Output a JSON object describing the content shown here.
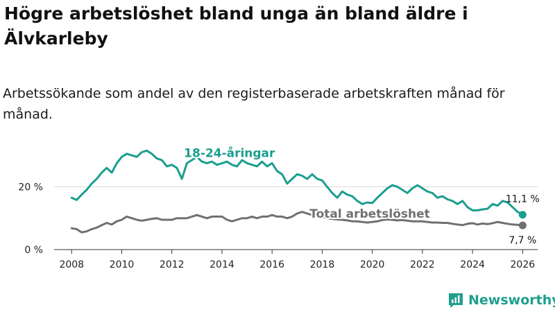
{
  "title": "Högre arbetslöshet bland unga än bland äldre i Älvkarleby",
  "subtitle": "Arbetssökande som andel av den registerbaserade arbetskraften månad för månad.",
  "brand": "Newsworthy",
  "colors": {
    "youth": "#1a9e8f",
    "total": "#707070",
    "grid": "#d9d9d9",
    "axis": "#333333"
  },
  "chart_data": {
    "type": "line",
    "title": "Högre arbetslöshet bland unga än bland äldre i Älvkarleby",
    "subtitle": "Arbetssökande som andel av den registerbaserade arbetskraften månad för månad.",
    "xlabel": "",
    "ylabel": "",
    "xlim": [
      2007.3,
      2026.6
    ],
    "ylim": [
      0,
      32
    ],
    "xticks": [
      2008,
      2010,
      2012,
      2014,
      2016,
      2018,
      2020,
      2022,
      2024,
      2026
    ],
    "xtick_labels": [
      "2008",
      "2010",
      "2012",
      "2014",
      "2016",
      "2018",
      "2020",
      "2022",
      "2024",
      "2026"
    ],
    "yticks": [
      0,
      20
    ],
    "ytick_labels": [
      "0 %",
      "20 %"
    ],
    "grid": true,
    "series": [
      {
        "name": "18-24-åringar",
        "x": [
          2008.0,
          2008.2,
          2008.4,
          2008.6,
          2008.8,
          2009.0,
          2009.2,
          2009.4,
          2009.6,
          2009.8,
          2010.0,
          2010.2,
          2010.4,
          2010.6,
          2010.8,
          2011.0,
          2011.2,
          2011.4,
          2011.6,
          2011.8,
          2012.0,
          2012.2,
          2012.4,
          2012.6,
          2012.8,
          2013.0,
          2013.2,
          2013.4,
          2013.6,
          2013.8,
          2014.0,
          2014.2,
          2014.4,
          2014.6,
          2014.8,
          2015.0,
          2015.2,
          2015.4,
          2015.6,
          2015.8,
          2016.0,
          2016.2,
          2016.4,
          2016.6,
          2016.8,
          2017.0,
          2017.2,
          2017.4,
          2017.6,
          2017.8,
          2018.0,
          2018.2,
          2018.4,
          2018.6,
          2018.8,
          2019.0,
          2019.2,
          2019.4,
          2019.6,
          2019.8,
          2020.0,
          2020.2,
          2020.4,
          2020.6,
          2020.8,
          2021.0,
          2021.2,
          2021.4,
          2021.6,
          2021.8,
          2022.0,
          2022.2,
          2022.4,
          2022.6,
          2022.8,
          2023.0,
          2023.2,
          2023.4,
          2023.6,
          2023.8,
          2024.0,
          2024.2,
          2024.4,
          2024.6,
          2024.8,
          2025.0,
          2025.2,
          2025.4,
          2025.6,
          2025.8,
          2026.0
        ],
        "values": [
          16.5,
          15.8,
          17.5,
          19.0,
          21.0,
          22.5,
          24.5,
          26.0,
          24.5,
          27.5,
          29.5,
          30.5,
          30.0,
          29.5,
          31.0,
          31.5,
          30.5,
          29.0,
          28.5,
          26.5,
          27.0,
          26.0,
          22.5,
          27.5,
          28.5,
          29.5,
          28.0,
          27.5,
          28.0,
          27.0,
          27.5,
          28.0,
          27.0,
          26.5,
          28.5,
          27.5,
          27.0,
          26.5,
          28.0,
          26.5,
          27.5,
          25.0,
          24.0,
          21.0,
          22.5,
          24.0,
          23.5,
          22.5,
          24.0,
          22.5,
          22.0,
          20.0,
          18.0,
          16.5,
          18.5,
          17.5,
          17.0,
          15.5,
          14.5,
          15.0,
          14.8,
          16.5,
          18.0,
          19.5,
          20.5,
          20.0,
          19.0,
          18.0,
          19.5,
          20.5,
          19.5,
          18.5,
          18.0,
          16.5,
          17.0,
          16.0,
          15.5,
          14.5,
          15.5,
          13.5,
          12.5,
          12.5,
          12.8,
          13.0,
          14.5,
          14.0,
          15.5,
          15.0,
          13.5,
          12.0,
          11.1
        ],
        "end_label": "11,1 %"
      },
      {
        "name": "Total arbetslöshet",
        "x": [
          2008.0,
          2008.2,
          2008.4,
          2008.6,
          2008.8,
          2009.0,
          2009.2,
          2009.4,
          2009.6,
          2009.8,
          2010.0,
          2010.2,
          2010.4,
          2010.6,
          2010.8,
          2011.0,
          2011.2,
          2011.4,
          2011.6,
          2011.8,
          2012.0,
          2012.2,
          2012.4,
          2012.6,
          2012.8,
          2013.0,
          2013.2,
          2013.4,
          2013.6,
          2013.8,
          2014.0,
          2014.2,
          2014.4,
          2014.6,
          2014.8,
          2015.0,
          2015.2,
          2015.4,
          2015.6,
          2015.8,
          2016.0,
          2016.2,
          2016.4,
          2016.6,
          2016.8,
          2017.0,
          2017.2,
          2017.4,
          2017.6,
          2017.8,
          2018.0,
          2018.2,
          2018.4,
          2018.6,
          2018.8,
          2019.0,
          2019.2,
          2019.4,
          2019.6,
          2019.8,
          2020.0,
          2020.2,
          2020.4,
          2020.6,
          2020.8,
          2021.0,
          2021.2,
          2021.4,
          2021.6,
          2021.8,
          2022.0,
          2022.2,
          2022.4,
          2022.6,
          2022.8,
          2023.0,
          2023.2,
          2023.4,
          2023.6,
          2023.8,
          2024.0,
          2024.2,
          2024.4,
          2024.6,
          2024.8,
          2025.0,
          2025.2,
          2025.4,
          2025.6,
          2025.8,
          2026.0
        ],
        "values": [
          6.8,
          6.5,
          5.5,
          5.8,
          6.5,
          7.0,
          7.8,
          8.5,
          8.0,
          9.0,
          9.5,
          10.5,
          10.0,
          9.5,
          9.2,
          9.5,
          9.8,
          10.0,
          9.5,
          9.5,
          9.5,
          10.0,
          10.0,
          10.0,
          10.5,
          11.0,
          10.5,
          10.0,
          10.5,
          10.5,
          10.5,
          9.5,
          9.0,
          9.5,
          10.0,
          10.0,
          10.5,
          10.0,
          10.5,
          10.5,
          11.0,
          10.5,
          10.5,
          10.0,
          10.5,
          11.5,
          12.0,
          11.5,
          11.0,
          10.5,
          10.5,
          10.0,
          9.8,
          9.6,
          9.5,
          9.3,
          9.0,
          9.0,
          8.8,
          8.6,
          8.8,
          9.0,
          9.4,
          9.6,
          9.5,
          9.3,
          9.4,
          9.2,
          9.0,
          9.0,
          9.0,
          8.8,
          8.6,
          8.6,
          8.5,
          8.5,
          8.2,
          8.0,
          7.8,
          8.2,
          8.4,
          8.0,
          8.3,
          8.1,
          8.4,
          8.8,
          8.5,
          8.2,
          8.0,
          7.9,
          7.7
        ],
        "end_label": "7,7 %"
      }
    ]
  }
}
